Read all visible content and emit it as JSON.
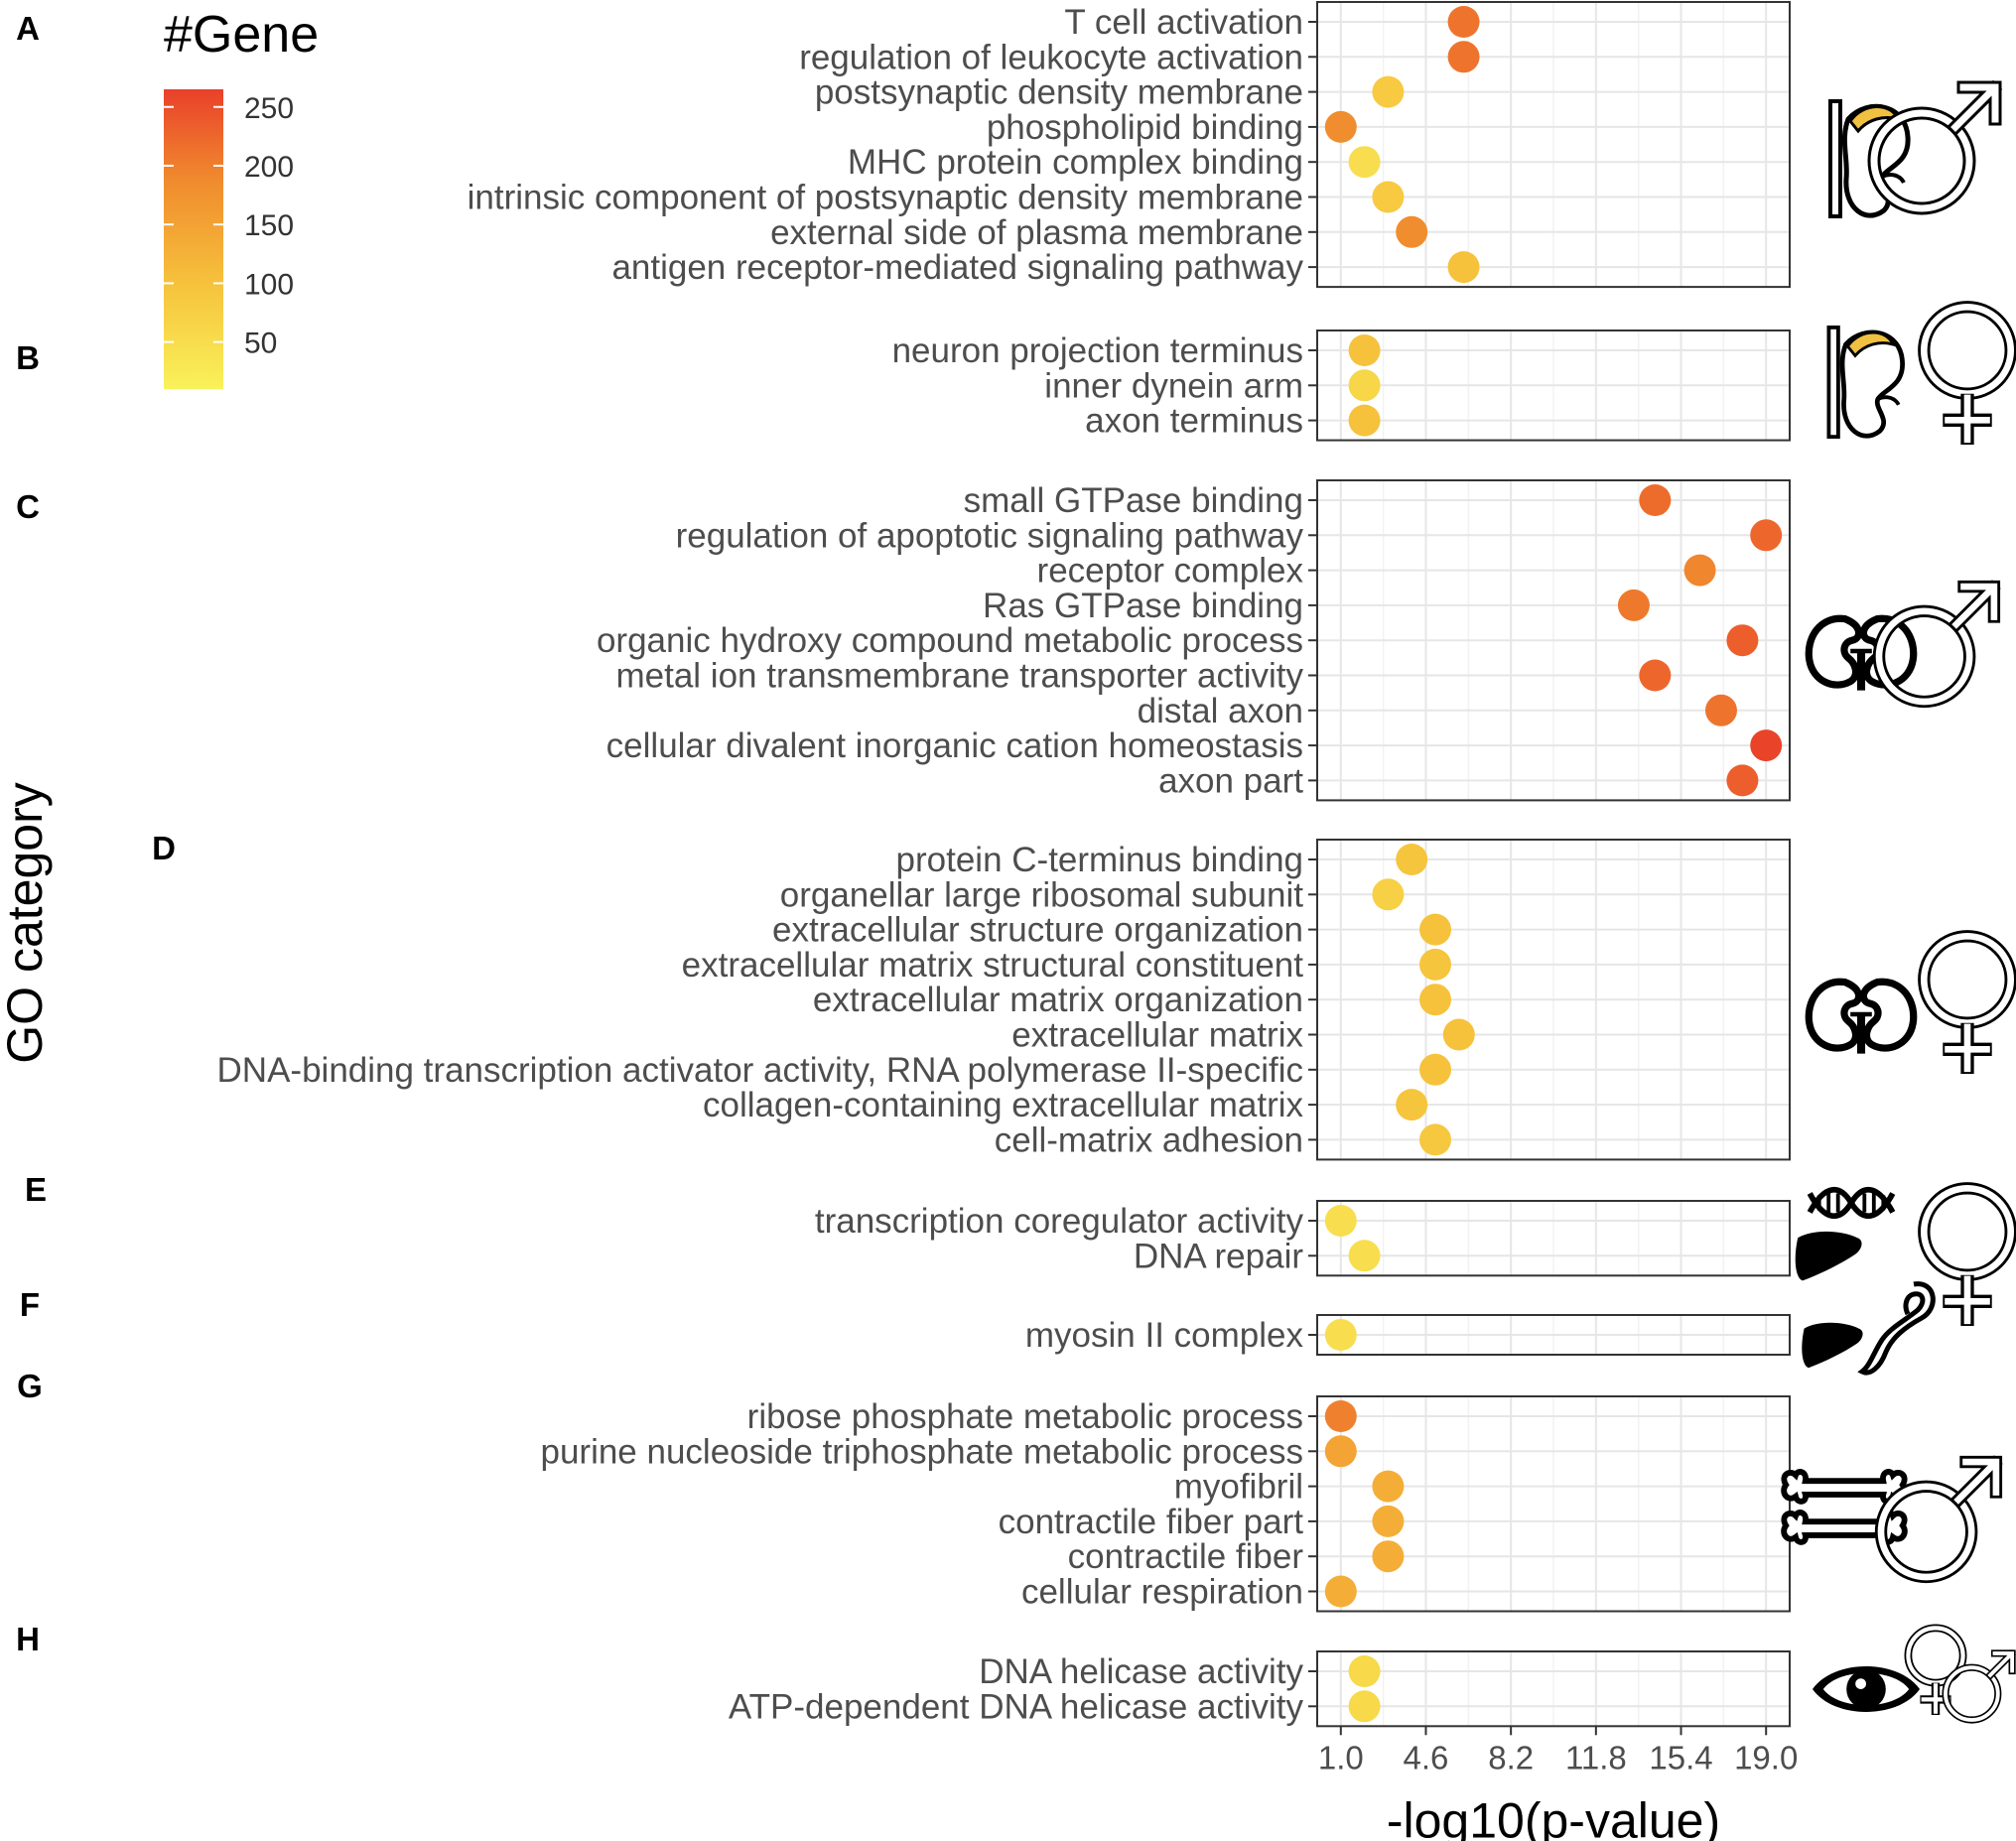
{
  "chart_data": {
    "type": "scatter",
    "title": "",
    "xlabel": "-log10(p-value)",
    "ylabel": "GO category",
    "xlim": [
      0.0,
      20.0
    ],
    "x_ticks": [
      1.0,
      4.6,
      8.2,
      11.8,
      15.4,
      19.0
    ],
    "x_tick_labels": [
      "1.0",
      "4.6",
      "8.2",
      "11.8",
      "15.4",
      "19.0"
    ],
    "legend": {
      "title": "#Gene",
      "position": "top-left",
      "min": 10,
      "max": 265,
      "ticks": [
        50,
        100,
        150,
        200,
        250
      ],
      "tick_labels": [
        "50",
        "100",
        "150",
        "200",
        "250"
      ],
      "colors": [
        "#f9f25a",
        "#f6c23c",
        "#f08a2e",
        "#e9402a"
      ]
    },
    "panels": [
      {
        "label": "A",
        "icons": [
          "kidney-with-adrenal-icon",
          "male-symbol-icon"
        ],
        "terms": [
          {
            "name": "T cell activation",
            "x": 6.2,
            "genes": 205
          },
          {
            "name": "regulation of leukocyte activation",
            "x": 6.2,
            "genes": 205
          },
          {
            "name": "postsynaptic density membrane",
            "x": 3.0,
            "genes": 80
          },
          {
            "name": "phospholipid binding",
            "x": 1.0,
            "genes": 175
          },
          {
            "name": "MHC protein complex binding",
            "x": 2.0,
            "genes": 45
          },
          {
            "name": "intrinsic component of postsynaptic density membrane",
            "x": 3.0,
            "genes": 80
          },
          {
            "name": "external side of plasma membrane",
            "x": 4.0,
            "genes": 175
          },
          {
            "name": "antigen receptor-mediated signaling pathway",
            "x": 6.2,
            "genes": 95
          }
        ]
      },
      {
        "label": "B",
        "icons": [
          "kidney-with-adrenal-icon",
          "female-symbol-icon"
        ],
        "terms": [
          {
            "name": "neuron projection terminus",
            "x": 2.0,
            "genes": 95
          },
          {
            "name": "inner dynein arm",
            "x": 2.0,
            "genes": 60
          },
          {
            "name": "axon terminus",
            "x": 2.0,
            "genes": 95
          }
        ]
      },
      {
        "label": "C",
        "icons": [
          "kidneys-icon",
          "male-symbol-icon"
        ],
        "terms": [
          {
            "name": "small GTPase binding",
            "x": 14.3,
            "genes": 215
          },
          {
            "name": "regulation of apoptotic signaling pathway",
            "x": 19.0,
            "genes": 220
          },
          {
            "name": "receptor complex",
            "x": 16.2,
            "genes": 185
          },
          {
            "name": "Ras GTPase binding",
            "x": 13.4,
            "genes": 200
          },
          {
            "name": "organic hydroxy compound metabolic process",
            "x": 18.0,
            "genes": 230
          },
          {
            "name": "metal ion transmembrane transporter activity",
            "x": 14.3,
            "genes": 220
          },
          {
            "name": "distal axon",
            "x": 17.1,
            "genes": 205
          },
          {
            "name": "cellular divalent inorganic cation homeostasis",
            "x": 19.0,
            "genes": 260
          },
          {
            "name": "axon part",
            "x": 18.0,
            "genes": 230
          }
        ]
      },
      {
        "label": "D",
        "icons": [
          "kidneys-icon",
          "female-symbol-icon"
        ],
        "terms": [
          {
            "name": "protein C-terminus binding",
            "x": 4.0,
            "genes": 90
          },
          {
            "name": "organellar large ribosomal subunit",
            "x": 3.0,
            "genes": 70
          },
          {
            "name": "extracellular structure organization",
            "x": 5.0,
            "genes": 95
          },
          {
            "name": "extracellular matrix structural constituent",
            "x": 5.0,
            "genes": 90
          },
          {
            "name": "extracellular matrix organization",
            "x": 5.0,
            "genes": 95
          },
          {
            "name": "extracellular matrix",
            "x": 6.0,
            "genes": 95
          },
          {
            "name": "DNA-binding transcription activator activity, RNA polymerase II-specific",
            "x": 5.0,
            "genes": 95
          },
          {
            "name": "collagen-containing extracellular matrix",
            "x": 4.0,
            "genes": 90
          },
          {
            "name": "cell-matrix adhesion",
            "x": 5.0,
            "genes": 85
          }
        ]
      },
      {
        "label": "E",
        "icons": [
          "dna-icon",
          "liver-icon",
          "female-symbol-icon"
        ],
        "terms": [
          {
            "name": "transcription coregulator activity",
            "x": 1.0,
            "genes": 45
          },
          {
            "name": "DNA repair",
            "x": 2.0,
            "genes": 45
          }
        ]
      },
      {
        "label": "F",
        "icons": [
          "liver-icon",
          "intestine-icon"
        ],
        "terms": [
          {
            "name": "myosin II complex",
            "x": 1.0,
            "genes": 45
          }
        ]
      },
      {
        "label": "G",
        "icons": [
          "bone-icon",
          "male-symbol-icon"
        ],
        "terms": [
          {
            "name": "ribose phosphate metabolic process",
            "x": 1.0,
            "genes": 190
          },
          {
            "name": "purine nucleoside triphosphate metabolic process",
            "x": 1.0,
            "genes": 140
          },
          {
            "name": "myofibril",
            "x": 3.0,
            "genes": 125
          },
          {
            "name": "contractile fiber part",
            "x": 3.0,
            "genes": 125
          },
          {
            "name": "contractile fiber",
            "x": 3.0,
            "genes": 125
          },
          {
            "name": "cellular respiration",
            "x": 1.0,
            "genes": 125
          }
        ]
      },
      {
        "label": "H",
        "icons": [
          "eye-icon",
          "female-symbol-icon",
          "male-symbol-icon"
        ],
        "terms": [
          {
            "name": "DNA helicase activity",
            "x": 2.0,
            "genes": 55
          },
          {
            "name": "ATP-dependent DNA helicase activity",
            "x": 2.0,
            "genes": 55
          }
        ]
      }
    ]
  }
}
